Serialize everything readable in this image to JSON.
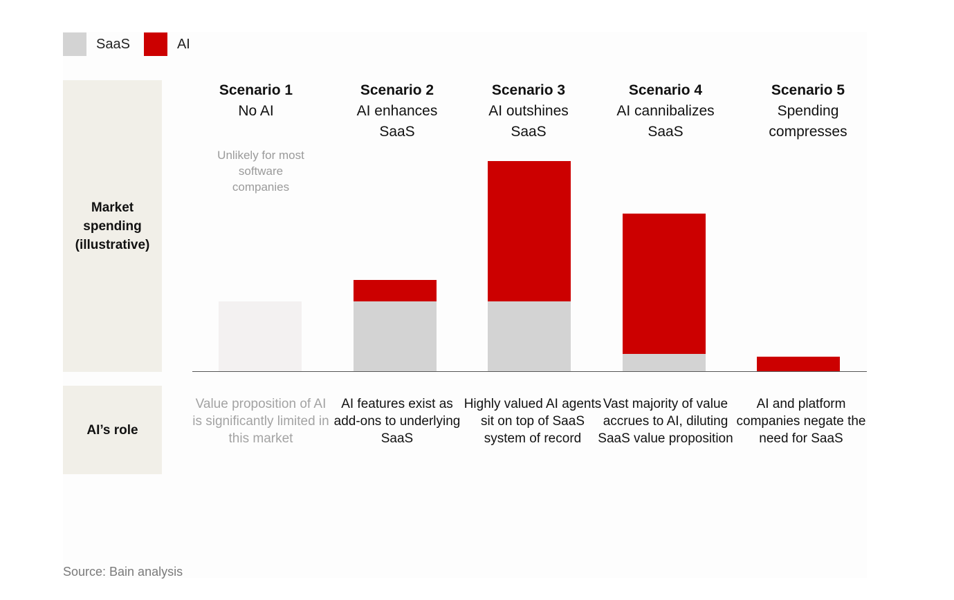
{
  "legend": [
    {
      "label": "SaaS",
      "color": "#d3d3d3"
    },
    {
      "label": "AI",
      "color": "#cc0000"
    }
  ],
  "panels": {
    "market_spending": "Market spending (illustrative)",
    "ai_role": "AI’s role"
  },
  "chart_data": {
    "type": "bar",
    "stacked": true,
    "title": "",
    "ylabel": "Market spending (illustrative)",
    "categories": [
      "Scenario 1",
      "Scenario 2",
      "Scenario 3",
      "Scenario 4",
      "Scenario 5"
    ],
    "series": [
      {
        "name": "SaaS",
        "color": "#d3d3d3",
        "values": [
          102,
          102,
          102,
          25,
          0
        ]
      },
      {
        "name": "AI",
        "color": "#cc0000",
        "values": [
          0,
          31,
          205,
          205,
          21
        ]
      }
    ],
    "ylim": [
      0,
      310
    ],
    "muted_categories": [
      0
    ],
    "muted_color": "#f3f1f1"
  },
  "scenarios": [
    {
      "number": "Scenario 1",
      "name": "No AI",
      "note": "Unlikely for most software companies",
      "role": "Value proposition of AI is significantly limited in this market"
    },
    {
      "number": "Scenario 2",
      "name": "AI enhances SaaS",
      "role": "AI features exist as add-ons to underlying SaaS"
    },
    {
      "number": "Scenario 3",
      "name": "AI outshines SaaS",
      "role": "Highly valued AI agents sit on top of SaaS system of record"
    },
    {
      "number": "Scenario 4",
      "name": "AI cannibalizes SaaS",
      "role": "Vast majority of value accrues to AI, diluting SaaS value proposition"
    },
    {
      "number": "Scenario 5",
      "name": "Spending compresses",
      "role": "AI and platform companies negate the need for SaaS"
    }
  ],
  "source": "Source: Bain analysis"
}
